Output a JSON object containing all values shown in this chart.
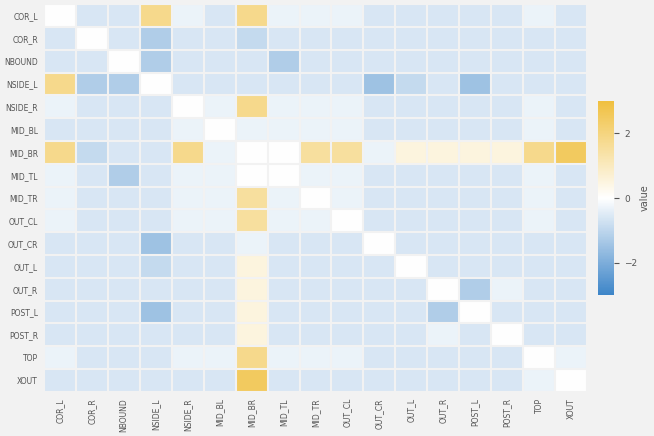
{
  "yticklabels": [
    "COR_L",
    "COR_R",
    "NBOUND",
    "NSIDE_L",
    "NSIDE_R",
    "MID_BL",
    "MID_BR",
    "MID_TL",
    "MID_TR",
    "OUT_CL",
    "OUT_CR",
    "OUT_L",
    "OUT_R",
    "POST_L",
    "POST_R",
    "TOP",
    "XOUT"
  ],
  "xticklabels": [
    "COR_L",
    "COR_R",
    "NBOUND",
    "NSIDE_L",
    "NSIDE_R",
    "MID_BL",
    "MID_BR",
    "MID_TL",
    "MID_TR",
    "OUT_CL",
    "OUT_CR",
    "OUT_L",
    "OUT_R",
    "POST_L",
    "POST_R",
    "TOP",
    "XOUT"
  ],
  "colorbar_label": "value",
  "vmin": -3,
  "vmax": 3,
  "background_color": "#f2f2f2",
  "cmap_colors": [
    [
      0.0,
      "#3d85c8"
    ],
    [
      0.5,
      "#ffffff"
    ],
    [
      1.0,
      "#f0c040"
    ]
  ],
  "colorbar_ticks": [
    2,
    0,
    -2
  ],
  "data": [
    [
      0.0,
      -0.6,
      -0.6,
      1.8,
      -0.3,
      -0.6,
      1.8,
      -0.3,
      -0.3,
      -0.3,
      -0.6,
      -0.6,
      -0.6,
      -0.6,
      -0.6,
      -0.3,
      -0.6
    ],
    [
      -0.6,
      0.0,
      -0.6,
      -1.2,
      -0.6,
      -0.6,
      -0.9,
      -0.6,
      -0.6,
      -0.6,
      -0.6,
      -0.6,
      -0.6,
      -0.6,
      -0.6,
      -0.6,
      -0.6
    ],
    [
      -0.6,
      -0.6,
      0.0,
      -1.2,
      -0.6,
      -0.6,
      -0.6,
      -1.2,
      -0.6,
      -0.6,
      -0.6,
      -0.6,
      -0.6,
      -0.6,
      -0.6,
      -0.6,
      -0.6
    ],
    [
      1.8,
      -1.2,
      -1.2,
      0.0,
      -0.6,
      -0.6,
      -0.6,
      -0.6,
      -0.6,
      -0.6,
      -1.5,
      -0.9,
      -0.6,
      -1.5,
      -0.6,
      -0.6,
      -0.6
    ],
    [
      -0.3,
      -0.6,
      -0.6,
      -0.6,
      0.0,
      -0.3,
      1.8,
      -0.3,
      -0.3,
      -0.3,
      -0.6,
      -0.6,
      -0.6,
      -0.6,
      -0.6,
      -0.3,
      -0.6
    ],
    [
      -0.6,
      -0.6,
      -0.6,
      -0.6,
      -0.3,
      0.0,
      -0.3,
      -0.3,
      -0.3,
      -0.3,
      -0.6,
      -0.6,
      -0.6,
      -0.6,
      -0.6,
      -0.3,
      -0.6
    ],
    [
      1.8,
      -0.9,
      -0.6,
      -0.6,
      1.8,
      -0.3,
      0.0,
      0.0,
      1.5,
      1.5,
      -0.3,
      0.5,
      0.5,
      0.5,
      0.5,
      1.8,
      2.5
    ],
    [
      -0.3,
      -0.6,
      -1.2,
      -0.6,
      -0.3,
      -0.3,
      0.0,
      0.0,
      -0.3,
      -0.3,
      -0.6,
      -0.6,
      -0.6,
      -0.6,
      -0.6,
      -0.3,
      -0.6
    ],
    [
      -0.3,
      -0.6,
      -0.6,
      -0.6,
      -0.3,
      -0.3,
      1.5,
      -0.3,
      0.0,
      -0.3,
      -0.6,
      -0.6,
      -0.6,
      -0.6,
      -0.6,
      -0.3,
      -0.6
    ],
    [
      -0.3,
      -0.6,
      -0.6,
      -0.6,
      -0.3,
      -0.3,
      1.5,
      -0.3,
      -0.3,
      0.0,
      -0.6,
      -0.6,
      -0.6,
      -0.6,
      -0.6,
      -0.3,
      -0.6
    ],
    [
      -0.6,
      -0.6,
      -0.6,
      -1.5,
      -0.6,
      -0.6,
      -0.3,
      -0.6,
      -0.6,
      -0.6,
      0.0,
      -0.6,
      -0.6,
      -0.6,
      -0.6,
      -0.6,
      -0.6
    ],
    [
      -0.6,
      -0.6,
      -0.6,
      -0.9,
      -0.6,
      -0.6,
      0.5,
      -0.6,
      -0.6,
      -0.6,
      -0.6,
      0.0,
      -0.6,
      -0.6,
      -0.6,
      -0.6,
      -0.6
    ],
    [
      -0.6,
      -0.6,
      -0.6,
      -0.6,
      -0.6,
      -0.6,
      0.5,
      -0.6,
      -0.6,
      -0.6,
      -0.6,
      -0.6,
      0.0,
      -1.2,
      -0.3,
      -0.6,
      -0.6
    ],
    [
      -0.6,
      -0.6,
      -0.6,
      -1.5,
      -0.6,
      -0.6,
      0.5,
      -0.6,
      -0.6,
      -0.6,
      -0.6,
      -0.6,
      -1.2,
      0.0,
      -0.6,
      -0.6,
      -0.6
    ],
    [
      -0.6,
      -0.6,
      -0.6,
      -0.6,
      -0.6,
      -0.6,
      0.5,
      -0.6,
      -0.6,
      -0.6,
      -0.6,
      -0.6,
      -0.3,
      -0.6,
      0.0,
      -0.6,
      -0.6
    ],
    [
      -0.3,
      -0.6,
      -0.6,
      -0.6,
      -0.3,
      -0.3,
      1.8,
      -0.3,
      -0.3,
      -0.3,
      -0.6,
      -0.6,
      -0.6,
      -0.6,
      -0.6,
      0.0,
      -0.3
    ],
    [
      -0.6,
      -0.6,
      -0.6,
      -0.6,
      -0.6,
      -0.6,
      2.5,
      -0.6,
      -0.6,
      -0.6,
      -0.6,
      -0.6,
      -0.6,
      -0.6,
      -0.6,
      -0.3,
      0.0
    ]
  ]
}
